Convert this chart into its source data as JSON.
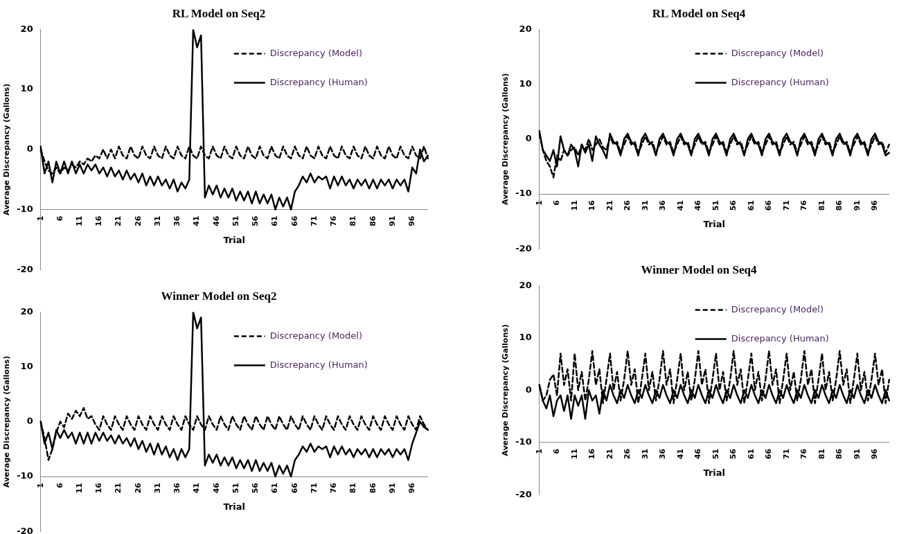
{
  "chart_data": [
    {
      "type": "line",
      "title": "RL Model on Seq2",
      "xlabel": "Trial",
      "ylabel": "Average Discrepancy (Gallons)",
      "ylim": [
        -20,
        20
      ],
      "yticks": [
        20,
        10,
        0,
        -10,
        -20
      ],
      "legend": "top right",
      "marker": "none",
      "categories": [
        "1",
        null,
        null,
        null,
        null,
        "6",
        null,
        null,
        null,
        null,
        "11",
        null,
        null,
        null,
        null,
        "16",
        null,
        null,
        null,
        null,
        "21",
        null,
        null,
        null,
        null,
        "26",
        null,
        null,
        null,
        null,
        "31",
        null,
        null,
        null,
        null,
        "36",
        null,
        null,
        null,
        null,
        "41",
        null,
        null,
        null,
        null,
        "46",
        null,
        null,
        null,
        null,
        "51",
        null,
        null,
        null,
        null,
        "56",
        null,
        null,
        null,
        null,
        "61",
        null,
        null,
        null,
        null,
        "66",
        null,
        null,
        null,
        null,
        "71",
        null,
        null,
        null,
        null,
        "76",
        null,
        null,
        null,
        null,
        "81",
        null,
        null,
        null,
        null,
        "86",
        null,
        null,
        null,
        null,
        "91",
        null,
        null,
        null,
        null,
        "96",
        null,
        null,
        null,
        null
      ],
      "series": [
        {
          "name": "Discrepancy (Model)",
          "color": "#000000",
          "line_style": "dashed",
          "values": [
            0,
            -2,
            -3.5,
            -4,
            -3,
            -4,
            -3,
            -3.5,
            -2.5,
            -3,
            -2,
            -2.5,
            -1.5,
            -2,
            -1,
            -1.5,
            0,
            -1.5,
            0,
            -1.5,
            0.5,
            -1,
            -1.5,
            0.5,
            -1,
            -1.5,
            0.5,
            -1,
            -1.5,
            0.5,
            -1,
            -1.5,
            0.5,
            -1,
            -1.5,
            0.5,
            -1,
            -1.5,
            0.5,
            -1,
            -1.5,
            0.5,
            -1,
            -1.5,
            0.5,
            -1,
            -1.5,
            0.5,
            -1,
            -1.5,
            0.5,
            -1,
            -1.5,
            0.5,
            -1,
            -1.5,
            0.5,
            -1,
            -1.5,
            0.5,
            -1,
            -1.5,
            0.5,
            -1,
            -1.5,
            0.5,
            -1,
            -1.5,
            0.5,
            -1,
            -1.5,
            0.5,
            -1,
            -1.5,
            0.5,
            -1,
            -1.5,
            0.5,
            -1,
            -1.5,
            0.5,
            -1,
            -1.5,
            0.5,
            -1,
            -1.5,
            0.5,
            -1,
            -1.5,
            0.5,
            -1,
            -1.5,
            0.5,
            -1,
            -1.5,
            0.5,
            -1,
            -1.5,
            0.5,
            -1.5
          ]
        },
        {
          "name": "Discrepancy (Human)",
          "color": "#000000",
          "line_style": "solid",
          "values": [
            0.5,
            -4,
            -2,
            -5.5,
            -2,
            -4,
            -2,
            -4,
            -2,
            -4,
            -2.5,
            -4,
            -2.5,
            -3.5,
            -2.5,
            -4,
            -3,
            -4.5,
            -3,
            -4.5,
            -3.5,
            -5,
            -3.5,
            -5,
            -4,
            -5.5,
            -4,
            -6,
            -4.5,
            -6,
            -4.5,
            -6,
            -5,
            -6.5,
            -5,
            -7,
            -5.5,
            -6.5,
            -5,
            20,
            17,
            19,
            -8,
            -6,
            -7.5,
            -6,
            -8,
            -6.5,
            -8,
            -6.5,
            -8.5,
            -7,
            -8.5,
            -7,
            -9,
            -7,
            -9,
            -7.5,
            -9,
            -7.5,
            -10,
            -8,
            -9.5,
            -8,
            -10,
            -7,
            -6,
            -4.5,
            -5.5,
            -4,
            -5.5,
            -4.5,
            -5,
            -4.5,
            -6.5,
            -4.5,
            -6,
            -4.5,
            -6,
            -5,
            -6.5,
            -5,
            -6,
            -5,
            -6.5,
            -5,
            -6.5,
            -5,
            -6,
            -5,
            -6.5,
            -5,
            -6,
            -5,
            -7,
            -3,
            -4,
            0,
            -2,
            -1
          ]
        }
      ]
    },
    {
      "type": "line",
      "title": "Winner Model on Seq2",
      "xlabel": "Trial",
      "ylabel": "Average Discrepancy (Gallons)",
      "ylim": [
        -20,
        20
      ],
      "yticks": [
        20,
        10,
        0,
        -10,
        -20
      ],
      "legend": "top right",
      "marker": "none",
      "categories": [
        "1",
        null,
        null,
        null,
        null,
        "6",
        null,
        null,
        null,
        null,
        "11",
        null,
        null,
        null,
        null,
        "16",
        null,
        null,
        null,
        null,
        "21",
        null,
        null,
        null,
        null,
        "26",
        null,
        null,
        null,
        null,
        "31",
        null,
        null,
        null,
        null,
        "36",
        null,
        null,
        null,
        null,
        "41",
        null,
        null,
        null,
        null,
        "46",
        null,
        null,
        null,
        null,
        "51",
        null,
        null,
        null,
        null,
        "56",
        null,
        null,
        null,
        null,
        "61",
        null,
        null,
        null,
        null,
        "66",
        null,
        null,
        null,
        null,
        "71",
        null,
        null,
        null,
        null,
        "76",
        null,
        null,
        null,
        null,
        "81",
        null,
        null,
        null,
        null,
        "86",
        null,
        null,
        null,
        null,
        "91",
        null,
        null,
        null,
        null,
        "96",
        null,
        null,
        null,
        null
      ],
      "series": [
        {
          "name": "Discrepancy (Model)",
          "color": "#000000",
          "line_style": "dashed",
          "values": [
            0,
            -3,
            -7,
            -5,
            -2,
            0,
            -1,
            1.5,
            0.5,
            2,
            1,
            2.5,
            0.5,
            1,
            -0.5,
            -1.5,
            1,
            -0.5,
            -1.5,
            1,
            -0.5,
            -1.5,
            1,
            -0.5,
            -1.5,
            1,
            -0.5,
            -1.5,
            1,
            -0.5,
            -1.5,
            1,
            -0.5,
            -1.5,
            1,
            -0.5,
            -1.5,
            1,
            -0.5,
            -1.5,
            1,
            -0.5,
            -1.5,
            1,
            -0.5,
            -1.5,
            1,
            -0.5,
            -1.5,
            1,
            -0.5,
            -1.5,
            1,
            -0.5,
            -1.5,
            1,
            -0.5,
            -1.5,
            1,
            -0.5,
            -1.5,
            1,
            -0.5,
            -1.5,
            1,
            -0.5,
            -1.5,
            1,
            -0.5,
            -1.5,
            1,
            -0.5,
            -1.5,
            1,
            -0.5,
            -1.5,
            1,
            -0.5,
            -1.5,
            1,
            -0.5,
            -1.5,
            1,
            -0.5,
            -1.5,
            1,
            -0.5,
            -1.5,
            1,
            -0.5,
            -1.5,
            1,
            -0.5,
            -1.5,
            1,
            -0.5,
            -1.5,
            1,
            -0.5,
            -1.5
          ]
        },
        {
          "name": "Discrepancy (Human)",
          "color": "#000000",
          "line_style": "solid",
          "values": [
            0,
            -4,
            -2,
            -5,
            -1.5,
            -3,
            -1.5,
            -3,
            -2,
            -4,
            -2,
            -4,
            -2,
            -4,
            -2,
            -3.5,
            -2,
            -3.5,
            -2.5,
            -4,
            -2.5,
            -4,
            -3,
            -4.5,
            -3,
            -5,
            -3.5,
            -5.5,
            -4,
            -6,
            -4,
            -6,
            -4.5,
            -6.5,
            -5,
            -7,
            -5,
            -6.5,
            -5,
            20,
            17,
            19,
            -8,
            -6,
            -7.5,
            -6,
            -8,
            -6.5,
            -8,
            -6.5,
            -8.5,
            -7,
            -8.5,
            -7,
            -9,
            -7,
            -9,
            -7.5,
            -9,
            -7.5,
            -10,
            -8,
            -9.5,
            -8,
            -10,
            -7,
            -6,
            -4.5,
            -5.5,
            -4,
            -5.5,
            -4.5,
            -5,
            -4.5,
            -6.5,
            -4.5,
            -6,
            -4.5,
            -6,
            -5,
            -6.5,
            -5,
            -6,
            -5,
            -6.5,
            -5,
            -6.5,
            -5,
            -6,
            -5,
            -6.5,
            -5,
            -6,
            -5,
            -7,
            -4,
            -2,
            0,
            -1,
            -1.5
          ]
        }
      ]
    },
    {
      "type": "line",
      "title": "RL Model on Seq4",
      "xlabel": "Trial",
      "ylabel": "Average Discrepancy (Gallons)",
      "ylim": [
        -20,
        20
      ],
      "yticks": [
        20,
        10,
        0,
        -10,
        -20
      ],
      "legend": "top right",
      "marker": "none",
      "categories": [
        "1",
        null,
        null,
        null,
        null,
        "6",
        null,
        null,
        null,
        null,
        "11",
        null,
        null,
        null,
        null,
        "16",
        null,
        null,
        null,
        null,
        "21",
        null,
        null,
        null,
        null,
        "26",
        null,
        null,
        null,
        null,
        "31",
        null,
        null,
        null,
        null,
        "36",
        null,
        null,
        null,
        null,
        "41",
        null,
        null,
        null,
        null,
        "46",
        null,
        null,
        null,
        null,
        "51",
        null,
        null,
        null,
        null,
        "56",
        null,
        null,
        null,
        null,
        "61",
        null,
        null,
        null,
        null,
        "66",
        null,
        null,
        null,
        null,
        "71",
        null,
        null,
        null,
        null,
        "76",
        null,
        null,
        null,
        null,
        "81",
        null,
        null,
        null,
        null,
        "86",
        null,
        null,
        null,
        null,
        "91",
        null,
        null,
        null,
        null,
        "96",
        null,
        null,
        null,
        null
      ],
      "series": [
        {
          "name": "Discrepancy (Model)",
          "color": "#000000",
          "line_style": "dashed",
          "values": [
            1,
            -2,
            -4,
            -5,
            -7,
            -3,
            -4,
            -2,
            -3,
            -2,
            -1.5,
            -3,
            -1,
            -2,
            0,
            -2,
            -1,
            0,
            -1.5,
            -2,
            0.5,
            -1,
            -0.5,
            -2.5,
            -1,
            0.5,
            -1,
            -0.5,
            -2.5,
            -1,
            0.5,
            -1,
            -0.5,
            -2.5,
            -1,
            0.5,
            -1,
            -0.5,
            -2.5,
            -1,
            0.5,
            -1,
            -0.5,
            -2.5,
            -1,
            0.5,
            -1,
            -0.5,
            -2.5,
            -1,
            0.5,
            -1,
            -0.5,
            -2.5,
            -1,
            0.5,
            -1,
            -0.5,
            -2.5,
            -1,
            0.5,
            -1,
            -0.5,
            -2.5,
            -1,
            0.5,
            -1,
            -0.5,
            -2.5,
            -1,
            0.5,
            -1,
            -0.5,
            -2.5,
            -1,
            0.5,
            -1,
            -0.5,
            -2.5,
            -1,
            0.5,
            -1,
            -0.5,
            -2.5,
            -1,
            0.5,
            -1,
            -0.5,
            -2.5,
            -1,
            0.5,
            -1,
            -0.5,
            -2.5,
            -1,
            0.5,
            -1,
            -0.5,
            -2.5,
            -1
          ]
        },
        {
          "name": "Discrepancy (Human)",
          "color": "#000000",
          "line_style": "solid",
          "values": [
            1.5,
            -2,
            -3,
            -4,
            -2,
            -5,
            0.5,
            -2,
            -3,
            -1,
            -2,
            -5,
            -1,
            -2.5,
            -1,
            -4,
            0.5,
            -1,
            -2,
            -3.5,
            1,
            -0.5,
            -1,
            -3,
            0,
            1,
            -0.5,
            -1,
            -3,
            0,
            1,
            -0.5,
            -1,
            -3,
            0,
            1,
            -0.5,
            -1,
            -3,
            0,
            1,
            -0.5,
            -1,
            -3,
            0,
            1,
            -0.5,
            -1,
            -3,
            0,
            1,
            -0.5,
            -1,
            -3,
            0,
            1,
            -0.5,
            -1,
            -3,
            0,
            1,
            -0.5,
            -1,
            -3,
            0,
            1,
            -0.5,
            -1,
            -3,
            0,
            1,
            -0.5,
            -1,
            -3,
            0,
            1,
            -0.5,
            -1,
            -3,
            0,
            1,
            -0.5,
            -1,
            -3,
            0,
            1,
            -0.5,
            -1,
            -3,
            0,
            1,
            -0.5,
            -1,
            -3,
            0,
            1,
            -0.5,
            -1,
            -3,
            -2.5
          ]
        }
      ]
    },
    {
      "type": "line",
      "title": "Winner Model on Seq4",
      "xlabel": "Trial",
      "ylabel": "Average Discrepancy (Gallons)",
      "ylim": [
        -20,
        20
      ],
      "yticks": [
        20,
        10,
        0,
        -10,
        -20
      ],
      "legend": "top right",
      "marker": "none",
      "categories": [
        "1",
        null,
        null,
        null,
        null,
        "6",
        null,
        null,
        null,
        null,
        "11",
        null,
        null,
        null,
        null,
        "16",
        null,
        null,
        null,
        null,
        "21",
        null,
        null,
        null,
        null,
        "26",
        null,
        null,
        null,
        null,
        "31",
        null,
        null,
        null,
        null,
        "36",
        null,
        null,
        null,
        null,
        "41",
        null,
        null,
        null,
        null,
        "46",
        null,
        null,
        null,
        null,
        "51",
        null,
        null,
        null,
        null,
        "56",
        null,
        null,
        null,
        null,
        "61",
        null,
        null,
        null,
        null,
        "66",
        null,
        null,
        null,
        null,
        "71",
        null,
        null,
        null,
        null,
        "76",
        null,
        null,
        null,
        null,
        "81",
        null,
        null,
        null,
        null,
        "86",
        null,
        null,
        null,
        null,
        "91",
        null,
        null,
        null,
        null,
        "96",
        null,
        null,
        null,
        null
      ],
      "series": [
        {
          "name": "Discrepancy (Model)",
          "color": "#000000",
          "line_style": "dashed",
          "values": [
            1,
            -2,
            -1,
            2,
            3,
            -1,
            7,
            1,
            4,
            -2,
            7,
            0,
            3.5,
            -2,
            2,
            7.5,
            1,
            4,
            -2.5,
            2,
            7,
            0,
            3.5,
            -2,
            2,
            7.5,
            1,
            4,
            -2.5,
            2,
            7,
            0,
            3.5,
            -2,
            2,
            7.5,
            1,
            4,
            -2.5,
            2,
            7,
            0,
            3.5,
            -2,
            2,
            7.5,
            1,
            4,
            -2.5,
            2,
            7,
            0,
            3.5,
            -2,
            2,
            7.5,
            1,
            4,
            -2.5,
            2,
            7,
            0,
            3.5,
            -2,
            2,
            7.5,
            1,
            4,
            -2.5,
            2,
            7,
            0,
            3.5,
            -2,
            2,
            7.5,
            1,
            4,
            -2.5,
            2,
            7,
            0,
            3.5,
            -2,
            2,
            7.5,
            1,
            4,
            -2.5,
            2,
            7,
            0,
            3.5,
            -2,
            2,
            7,
            1,
            4,
            -2.5,
            2
          ]
        },
        {
          "name": "Discrepancy (Human)",
          "color": "#000000",
          "line_style": "solid",
          "values": [
            1,
            -2,
            -3.5,
            -1,
            -5,
            -2,
            -1,
            -4,
            -1,
            -5.5,
            -1,
            -3,
            -1,
            -5.5,
            0,
            -2,
            -1,
            -4.5,
            0,
            -2,
            1,
            -1,
            -2.5,
            0,
            -1.5,
            1,
            -1,
            -2.5,
            0,
            -1.5,
            1,
            -1,
            -2.5,
            0,
            -1.5,
            1,
            -1,
            -2.5,
            0,
            -1.5,
            1,
            -1,
            -2.5,
            0,
            -1.5,
            1,
            -1,
            -2.5,
            0,
            -1.5,
            1,
            -1,
            -2.5,
            0,
            -1.5,
            1,
            -1,
            -2.5,
            0,
            -1.5,
            1,
            -1,
            -2.5,
            0,
            -1.5,
            1,
            -1,
            -2.5,
            0,
            -1.5,
            1,
            -1,
            -2.5,
            0,
            -1.5,
            1,
            -1,
            -2.5,
            0,
            -1.5,
            1,
            -1,
            -2.5,
            0,
            -1.5,
            1,
            -1,
            -2.5,
            0,
            -1.5,
            1,
            -1,
            -2.5,
            0,
            -1.5,
            1,
            -1,
            -2.5,
            0,
            -2
          ]
        }
      ]
    }
  ]
}
